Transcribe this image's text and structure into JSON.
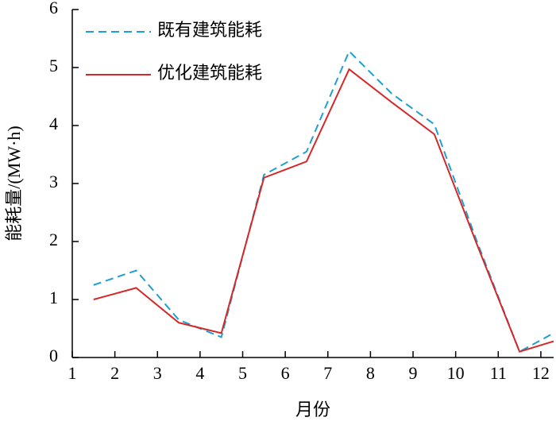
{
  "chart_data": {
    "type": "line",
    "x_label": "月份",
    "y_label": "能耗量/(MW·h)",
    "x": [
      1.5,
      2.5,
      3.5,
      4.5,
      5.5,
      6.5,
      7.5,
      8.5,
      9.5,
      10.5,
      11.5,
      12.3
    ],
    "series": [
      {
        "name": "既有建筑能耗",
        "color": "#1f9fd0",
        "dash": true,
        "values": [
          1.25,
          1.5,
          0.65,
          0.35,
          3.15,
          3.55,
          5.28,
          4.55,
          4.02,
          2.0,
          0.1,
          0.42
        ]
      },
      {
        "name": "优化建筑能耗",
        "color": "#d62728",
        "dash": false,
        "values": [
          1.0,
          1.2,
          0.6,
          0.42,
          3.1,
          3.38,
          4.97,
          4.4,
          3.85,
          1.95,
          0.1,
          0.28
        ]
      }
    ],
    "xlim": [
      1,
      12.3
    ],
    "xticks": [
      1,
      2,
      3,
      4,
      5,
      6,
      7,
      8,
      9,
      10,
      11,
      12
    ],
    "ylim": [
      0,
      6
    ],
    "yticks": [
      0,
      1,
      2,
      3,
      4,
      5,
      6
    ],
    "legend": "upper-left",
    "grid": false
  }
}
